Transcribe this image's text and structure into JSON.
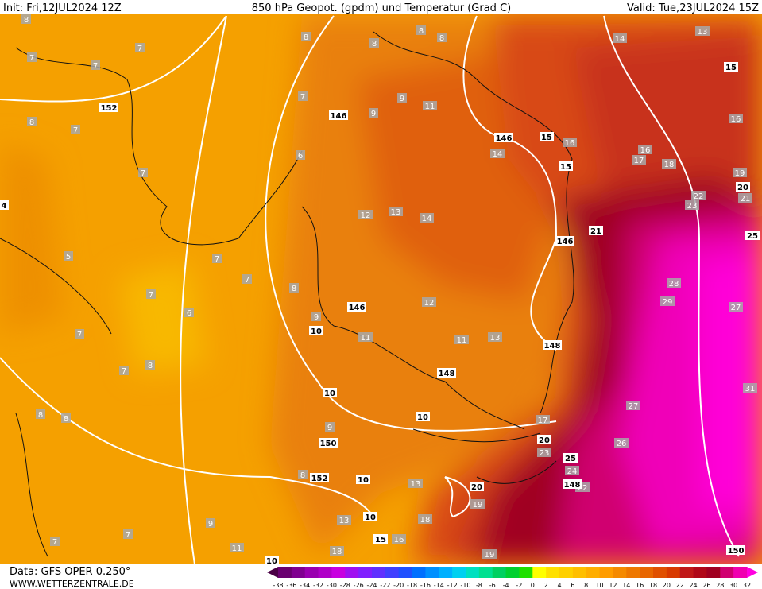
{
  "header": {
    "init": "Init: Fri,12JUL2024 12Z",
    "title": "850 hPa Geopot. (gpdm) und Temperatur (Grad C)",
    "valid": "Valid: Tue,23JUL2024 15Z"
  },
  "footer": {
    "data": "Data: GFS OPER 0.250°",
    "site": "WWW.WETTERZENTRALE.DE"
  },
  "temperature_labels": [
    "8",
    "7",
    "7",
    "7",
    "8",
    "8",
    "8",
    "8",
    "7",
    "9",
    "11",
    "9",
    "8",
    "7",
    "7",
    "6",
    "14",
    "13",
    "16",
    "16",
    "14",
    "16",
    "17",
    "18",
    "19",
    "12",
    "13",
    "14",
    "22",
    "23",
    "21",
    "5",
    "7",
    "7",
    "8",
    "28",
    "29",
    "27",
    "7",
    "6",
    "9",
    "12",
    "7",
    "11",
    "11",
    "13",
    "8",
    "7",
    "31",
    "8",
    "8",
    "27",
    "17",
    "23",
    "26",
    "24",
    "22",
    "9",
    "8",
    "13",
    "19",
    "18",
    "7",
    "9",
    "7",
    "11",
    "16",
    "19",
    "18",
    "13"
  ],
  "geopotential_labels": [
    "152",
    "146",
    "146",
    "15",
    "15",
    "15",
    "20",
    "25",
    "21",
    "146",
    "146",
    "10",
    "148",
    "148",
    "10",
    "10",
    "150",
    "20",
    "25",
    "148",
    "152",
    "10",
    "20",
    "10",
    "15",
    "10",
    "150",
    "4"
  ],
  "colorbar": {
    "levels": [
      -38,
      -36,
      -34,
      -32,
      -30,
      -28,
      -26,
      -24,
      -22,
      -20,
      -18,
      -16,
      -14,
      -12,
      -10,
      -8,
      -6,
      -4,
      -2,
      0,
      2,
      4,
      6,
      8,
      10,
      12,
      14,
      16,
      18,
      20,
      22,
      24,
      26,
      28,
      30,
      32
    ],
    "colors": [
      "#4a0045",
      "#6a0070",
      "#800090",
      "#9a00b0",
      "#b000c8",
      "#c800e0",
      "#a010f0",
      "#8020ff",
      "#6030ff",
      "#4040ff",
      "#2050ff",
      "#0070ff",
      "#0090ff",
      "#00b0ff",
      "#00d0f0",
      "#00e0c0",
      "#00e090",
      "#00d060",
      "#00d030",
      "#20e000",
      "#ffff00",
      "#ffe000",
      "#ffd000",
      "#ffbf00",
      "#ffae00",
      "#ff9c00",
      "#f58a00",
      "#ee7800",
      "#e86600",
      "#e05000",
      "#d83a00",
      "#c01818",
      "#b00818",
      "#a00020",
      "#d00070",
      "#f000b0",
      "#ff00e0"
    ]
  }
}
